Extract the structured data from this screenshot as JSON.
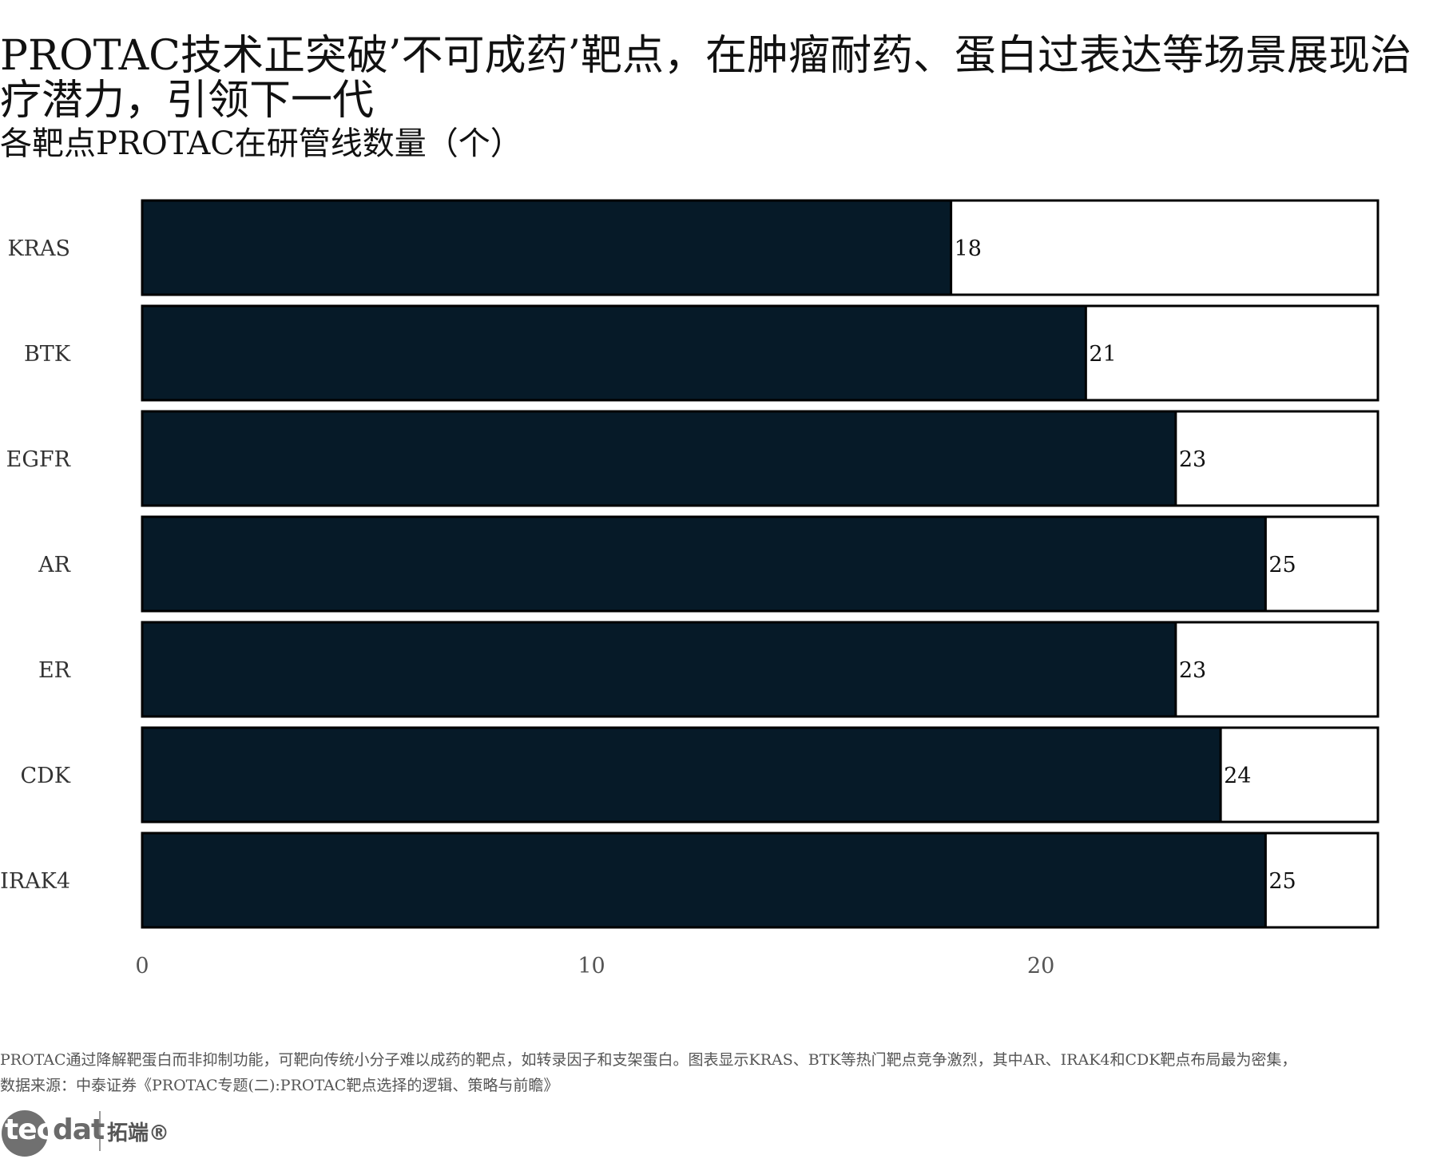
{
  "header": {
    "title": "PROTAC技术正突破’不可成药’靶点，在肿瘤耐药、蛋白过表达等场景展现治疗潜力，引领下一代",
    "subtitle": "各靶点PROTAC在研管线数量（个）"
  },
  "chart_data": {
    "type": "bar",
    "orientation": "horizontal",
    "categories": [
      "KRAS",
      "BTK",
      "EGFR",
      "AR",
      "ER",
      "CDK",
      "IRAK4"
    ],
    "values": [
      18,
      21,
      23,
      25,
      23,
      24,
      25
    ],
    "xticks": [
      0,
      10,
      20
    ],
    "xlim": [
      0,
      27.5
    ],
    "data_labels": true,
    "grid": false,
    "colors": {
      "bar": "#061a28",
      "track": "#ffffff",
      "outline": "#000000"
    }
  },
  "footer": {
    "caption": "PROTAC通过降解靶蛋白而非抑制功能，可靶向传统小分子难以成药的靶点，如转录因子和支架蛋白。图表显示KRAS、BTK等热门靶点竞争激烈，其中AR、IRAK4和CDK靶点布局最为密集，",
    "source": "数据来源：中泰证券《PROTAC专题(二):PROTAC靶点选择的逻辑、策略与前瞻》"
  },
  "logo": {
    "word_part1": "tec",
    "word_part2": "dat",
    "cn": "拓端®"
  }
}
